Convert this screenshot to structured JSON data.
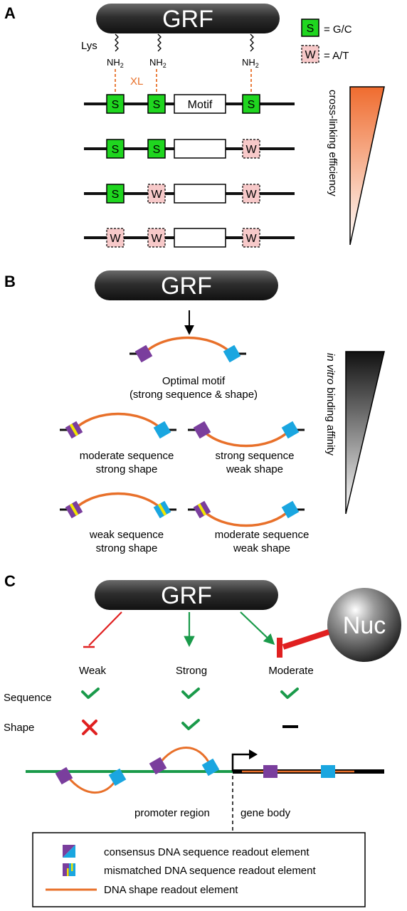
{
  "panel_a": {
    "letter": "A",
    "grf": "GRF",
    "lys": "Lys",
    "nh2": "NH",
    "nh2_sub": "2",
    "xl": "XL",
    "motif": "Motif",
    "legend_s_symbol": "S",
    "legend_s_text": "= G/C",
    "legend_w_symbol": "W",
    "legend_w_text": "= A/T",
    "rows": [
      [
        "S",
        "S",
        "S"
      ],
      [
        "S",
        "S",
        "W"
      ],
      [
        "S",
        "W",
        "W"
      ],
      [
        "W",
        "W",
        "W"
      ]
    ],
    "gradient_label": "cross-linking efficiency",
    "gradient_color": "#ef6c2f"
  },
  "panel_b": {
    "letter": "B",
    "grf": "GRF",
    "optimal_line1": "Optimal motif",
    "optimal_line2": "(strong sequence & shape)",
    "cases": [
      {
        "line1": "moderate sequence",
        "line2": "strong shape"
      },
      {
        "line1": "strong sequence",
        "line2": "weak shape"
      },
      {
        "line1": "weak sequence",
        "line2": "strong shape"
      },
      {
        "line1": "moderate sequence",
        "line2": "weak shape"
      }
    ],
    "gradient_label_italic": "in vitro",
    "gradient_label_rest": " binding affinity"
  },
  "panel_c": {
    "letter": "C",
    "grf": "GRF",
    "nuc": "Nuc",
    "col_headers": [
      "Weak",
      "Strong",
      "Moderate"
    ],
    "row_sequence": "Sequence",
    "row_shape": "Shape",
    "promoter": "promoter region",
    "gene_body": "gene body"
  },
  "legend": {
    "consensus": "consensus DNA sequence readout element",
    "mismatched": "mismatched DNA sequence readout element",
    "shape": "DNA shape readout element"
  },
  "colors": {
    "s_green": "#1fd61f",
    "w_pink": "#f7c9c9",
    "orange": "#e8702a",
    "purple": "#7a3e9d",
    "blue": "#1aa6e0",
    "yellow": "#f2e600",
    "green_dna": "#1a9a4a",
    "check_green": "#1a9a4a",
    "red": "#e02020"
  }
}
